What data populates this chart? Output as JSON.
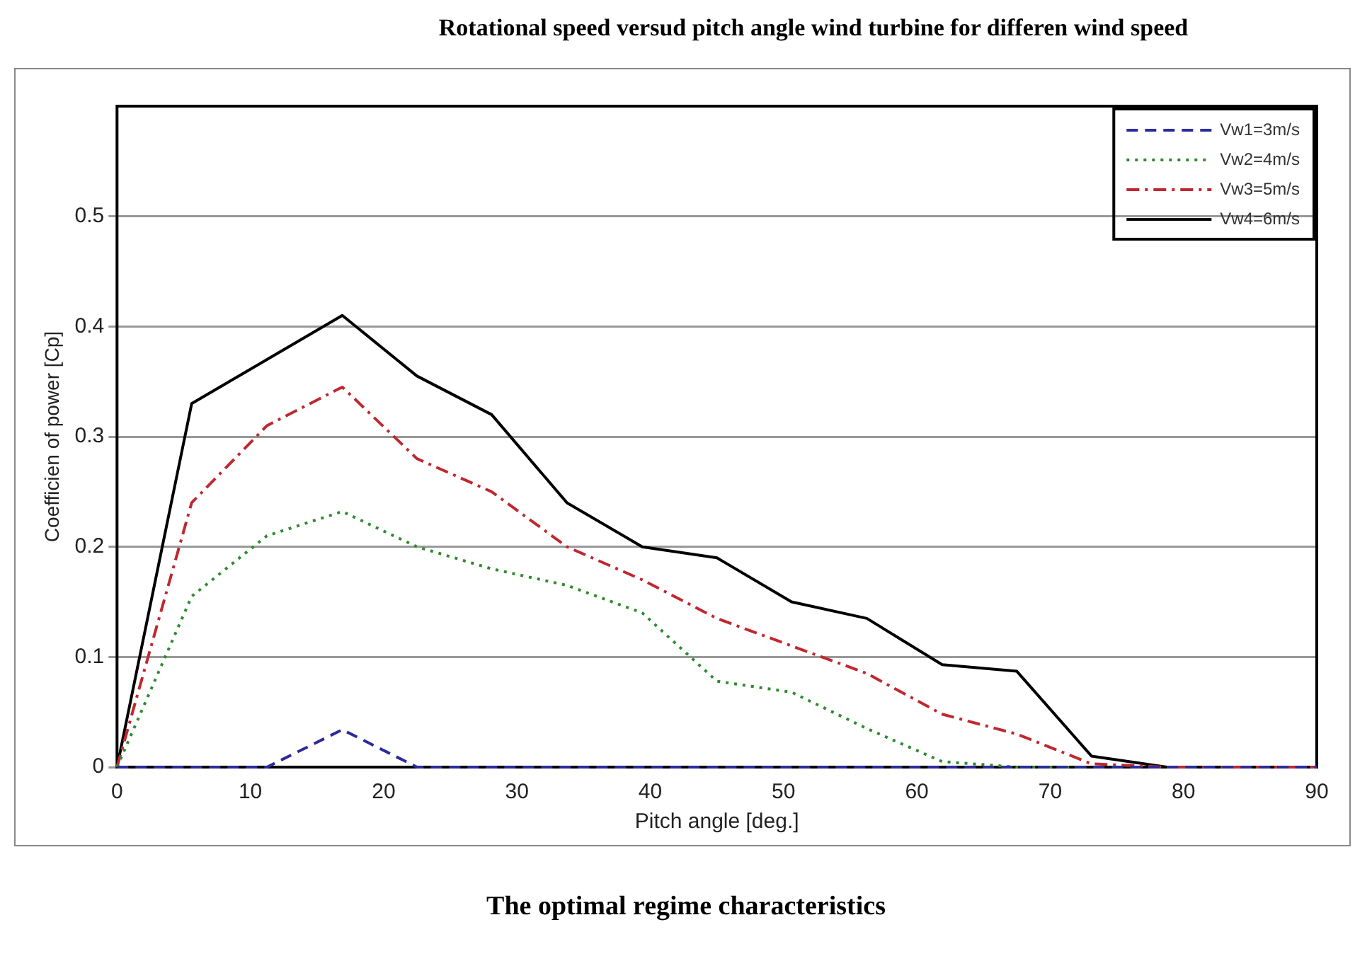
{
  "chart_data": {
    "type": "line",
    "title": "Rotational speed versud pitch angle wind turbine for differen wind speed",
    "xlabel": "Pitch angle [deg.]",
    "ylabel": "Coefficien of power [Cp]",
    "annotations": [
      "The optimal regime characteristics"
    ],
    "x": [
      0,
      5.6,
      11.25,
      16.9,
      22.5,
      28.1,
      33.75,
      39.4,
      45,
      50.6,
      56.25,
      61.9,
      67.5,
      73.1,
      78.75,
      84.4,
      90
    ],
    "series": [
      {
        "name": "Vw1=3m/s",
        "color": "#2b2b9c",
        "line_style": "dashed",
        "values": [
          0,
          0,
          0,
          0.034,
          0,
          0,
          0,
          0,
          0,
          0,
          0,
          0,
          0,
          0,
          0,
          0,
          0
        ]
      },
      {
        "name": "Vw2=4m/s",
        "color": "#2e8b2e",
        "line_style": "dotted",
        "values": [
          0,
          0.155,
          0.21,
          0.232,
          0.2,
          0.18,
          0.165,
          0.14,
          0.078,
          0.068,
          0.035,
          0.005,
          0,
          0,
          null,
          null,
          null
        ]
      },
      {
        "name": "Vw3=5m/s",
        "color": "#c0282f",
        "line_style": "dashdot",
        "values": [
          0,
          0.24,
          0.31,
          0.345,
          0.28,
          0.25,
          0.2,
          0.17,
          0.135,
          0.11,
          0.085,
          0.048,
          0.03,
          0.003,
          0,
          0,
          0
        ]
      },
      {
        "name": "Vw4=6m/s",
        "color": "#000000",
        "line_style": "solid",
        "values": [
          0,
          0.33,
          0.37,
          0.41,
          0.355,
          0.32,
          0.24,
          0.2,
          0.19,
          0.15,
          0.135,
          0.093,
          0.087,
          0.01,
          0,
          0,
          0
        ]
      }
    ],
    "xlim": [
      0,
      90
    ],
    "xticks": [
      0,
      10,
      20,
      30,
      40,
      50,
      60,
      70,
      80,
      90
    ],
    "ylim": [
      0,
      0.6
    ],
    "yticks": [
      0,
      0.1,
      0.2,
      0.3,
      0.4,
      0.5
    ],
    "grid": "y",
    "legend": "top right",
    "marker": "none"
  }
}
